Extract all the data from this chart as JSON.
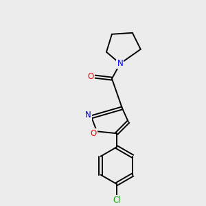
{
  "background_color": "#ececec",
  "bond_color": "#000000",
  "atom_colors": {
    "N": "#0000ff",
    "O_carbonyl": "#ff0000",
    "O_ring": "#ff0000",
    "N_ring": "#0000cc",
    "Cl": "#00aa00",
    "C": "#000000"
  },
  "figsize": [
    3.0,
    3.0
  ],
  "dpi": 100
}
